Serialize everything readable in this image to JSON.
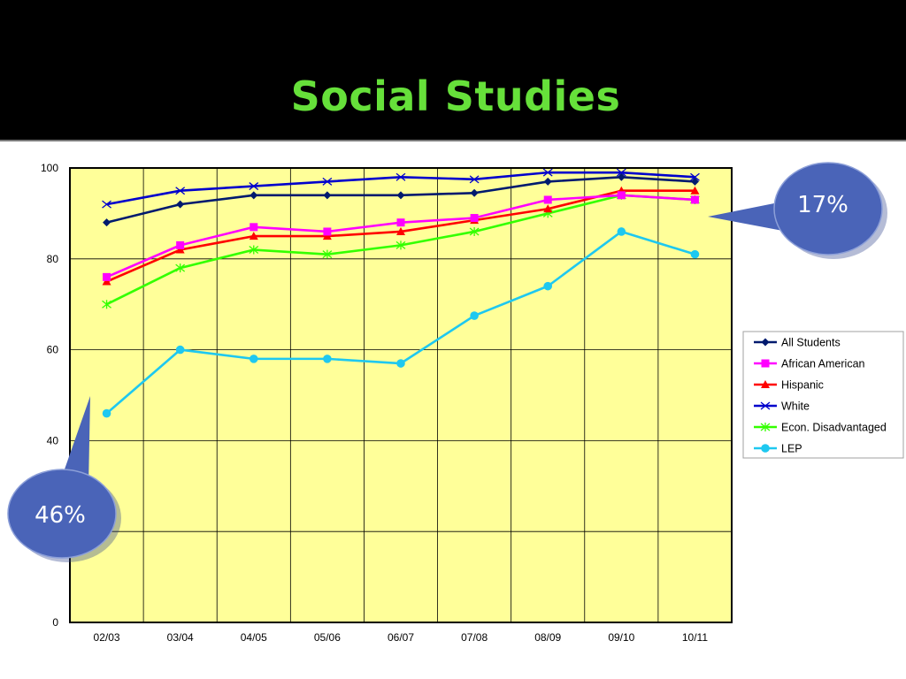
{
  "slide": {
    "title": "Social Studies"
  },
  "callouts": [
    {
      "label": "17%",
      "fill": "#4a64b8"
    },
    {
      "label": "46%",
      "fill": "#4a64b8"
    }
  ],
  "chart_data": {
    "type": "line",
    "title": "",
    "xlabel": "",
    "ylabel": "",
    "categories": [
      "02/03",
      "03/04",
      "04/05",
      "05/06",
      "06/07",
      "07/08",
      "08/09",
      "09/10",
      "10/11"
    ],
    "ylim": [
      0,
      100
    ],
    "ytick_labels": [
      "0",
      "40",
      "60",
      "80",
      "100"
    ],
    "plot_background": "#ffff99",
    "grid": true,
    "legend_position": "right",
    "series": [
      {
        "name": "All Students",
        "color": "#001a6e",
        "marker": "diamond",
        "values": [
          88,
          92,
          94,
          94,
          94,
          94.5,
          97,
          98,
          97
        ]
      },
      {
        "name": "African American",
        "color": "#ff00ff",
        "marker": "square",
        "values": [
          76,
          83,
          87,
          86,
          88,
          89,
          93,
          94,
          93
        ]
      },
      {
        "name": "Hispanic",
        "color": "#ff0000",
        "marker": "triangle",
        "values": [
          75,
          82,
          85,
          85,
          86,
          88.5,
          91,
          95,
          95
        ]
      },
      {
        "name": "White",
        "color": "#0000cc",
        "marker": "x",
        "values": [
          92,
          95,
          96,
          97,
          98,
          97.5,
          99,
          99,
          98
        ]
      },
      {
        "name": "Econ. Disadvantaged",
        "color": "#33ff00",
        "marker": "star",
        "values": [
          70,
          78,
          82,
          81,
          83,
          86,
          90,
          94,
          93
        ]
      },
      {
        "name": "LEP",
        "color": "#1ec8f0",
        "marker": "circle",
        "values": [
          46,
          60,
          58,
          58,
          57,
          67.5,
          74,
          86,
          81
        ]
      }
    ]
  }
}
